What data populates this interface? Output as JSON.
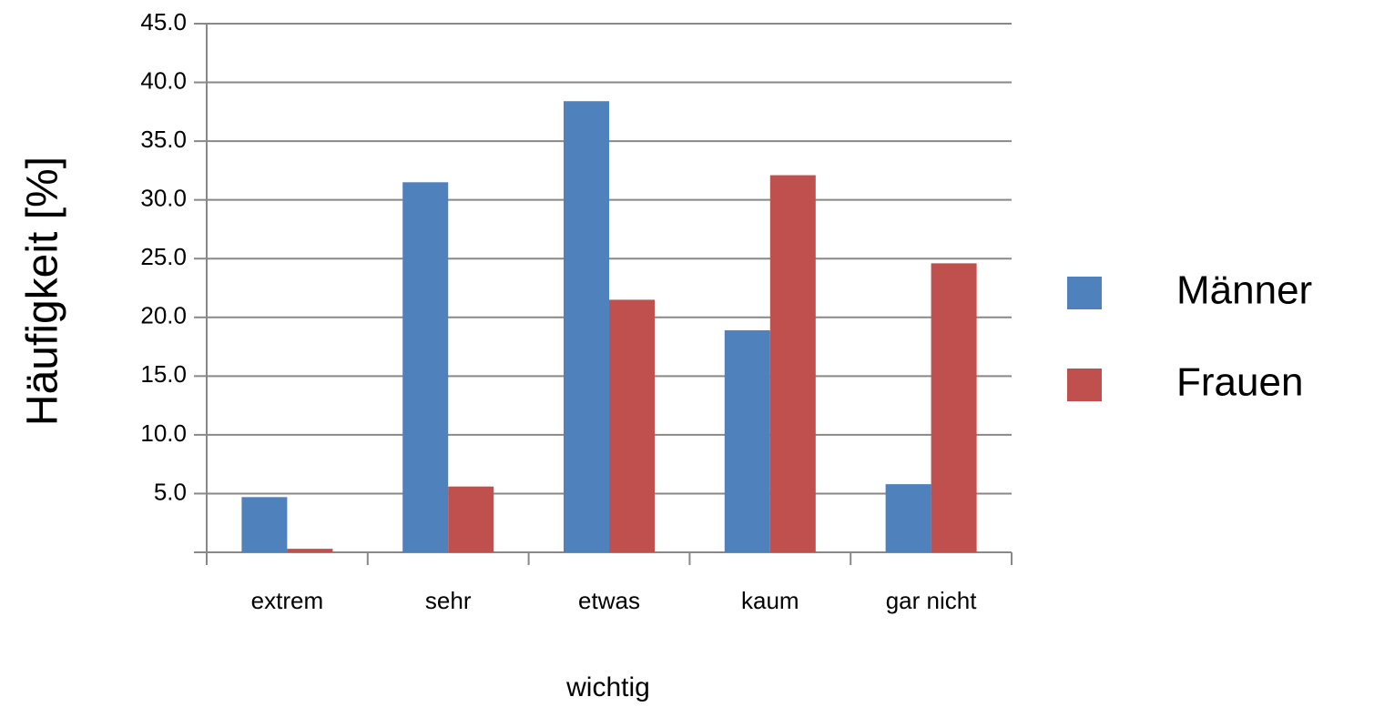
{
  "chart_data": {
    "type": "bar",
    "categories": [
      "extrem",
      "sehr",
      "etwas",
      "kaum",
      "gar nicht"
    ],
    "series": [
      {
        "name": "Männer",
        "color": "#4f81bd",
        "values": [
          4.7,
          31.5,
          38.4,
          18.9,
          5.8
        ]
      },
      {
        "name": "Frauen",
        "color": "#c0504d",
        "values": [
          0.3,
          5.6,
          21.5,
          32.1,
          24.6
        ]
      }
    ],
    "x_label": "wichtig",
    "y_label": "Häufigkeit [%]",
    "ylim": [
      0,
      45
    ],
    "yticks": [
      {
        "value": 5,
        "label": "5.0"
      },
      {
        "value": 10,
        "label": "10.0"
      },
      {
        "value": 15,
        "label": "15.0"
      },
      {
        "value": 20,
        "label": "20.0"
      },
      {
        "value": 25,
        "label": "25.0"
      },
      {
        "value": 30,
        "label": "30.0"
      },
      {
        "value": 35,
        "label": "35.0"
      },
      {
        "value": 40,
        "label": "40.0"
      },
      {
        "value": 45,
        "label": "45.0"
      }
    ],
    "grid": true,
    "legend": "right"
  }
}
